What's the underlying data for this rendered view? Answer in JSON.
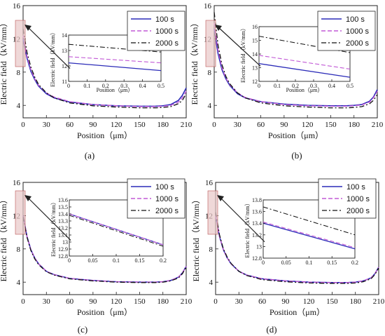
{
  "figure": {
    "colors": {
      "series_100": "#2b2bb8",
      "series_1000": "#c25ad6",
      "series_2000": "#111111",
      "highlight": "#e8c8c8"
    }
  },
  "chart_data": [
    {
      "type": "line",
      "panel_label": "(a)",
      "xlabel": "Position（μm）",
      "ylabel": "Electric field（kV/mm）",
      "xlim": [
        0,
        210
      ],
      "ylim": [
        2.5,
        16
      ],
      "xticks": [
        0,
        30,
        60,
        90,
        120,
        150,
        180,
        210
      ],
      "yticks": [
        4,
        8,
        12,
        16
      ],
      "legend_position": "top-right",
      "series": [
        {
          "name": "100 s",
          "x": [
            0,
            5,
            10,
            15,
            20,
            30,
            40,
            60,
            90,
            120,
            150,
            170,
            180,
            190,
            200,
            205,
            210
          ],
          "y": [
            12.0,
            9.7,
            8.1,
            7.1,
            6.3,
            5.4,
            4.9,
            4.4,
            4.1,
            3.95,
            3.9,
            3.9,
            3.95,
            4.1,
            4.6,
            5.2,
            6.1
          ]
        },
        {
          "name": "1000 s",
          "x": [
            0,
            5,
            10,
            15,
            20,
            30,
            40,
            60,
            90,
            120,
            150,
            170,
            180,
            190,
            200,
            205,
            210
          ],
          "y": [
            12.4,
            9.9,
            8.3,
            7.2,
            6.4,
            5.5,
            5.0,
            4.45,
            4.1,
            3.95,
            3.85,
            3.85,
            3.9,
            4.0,
            4.4,
            4.9,
            5.7
          ]
        },
        {
          "name": "2000 s",
          "x": [
            0,
            5,
            10,
            15,
            20,
            30,
            40,
            60,
            90,
            120,
            150,
            170,
            180,
            190,
            200,
            205,
            210
          ],
          "y": [
            13.2,
            10.4,
            8.6,
            7.4,
            6.5,
            5.5,
            4.9,
            4.3,
            3.95,
            3.8,
            3.7,
            3.7,
            3.75,
            3.85,
            4.2,
            4.6,
            5.4
          ]
        }
      ],
      "inset": {
        "xlim": [
          0,
          0.5
        ],
        "ylim": [
          11,
          14
        ],
        "xticks": [
          0.0,
          0.1,
          0.2,
          0.3,
          0.4,
          0.5
        ],
        "yticks": [
          11,
          12,
          13,
          14
        ],
        "xlabel": "Position（μm）",
        "ylabel": "Electric field（kV/mm）",
        "series": [
          {
            "name": "100 s",
            "x": [
              0,
              0.5
            ],
            "y": [
              12.2,
              11.7
            ]
          },
          {
            "name": "1000 s",
            "x": [
              0,
              0.5
            ],
            "y": [
              12.6,
              12.2
            ]
          },
          {
            "name": "2000 s",
            "x": [
              0,
              0.5
            ],
            "y": [
              13.4,
              12.9
            ]
          }
        ]
      }
    },
    {
      "type": "line",
      "panel_label": "(b)",
      "xlabel": "Position（μm）",
      "ylabel": "Electric field（kV/mm）",
      "xlim": [
        0,
        210
      ],
      "ylim": [
        2.5,
        16
      ],
      "xticks": [
        0,
        30,
        60,
        90,
        120,
        150,
        180,
        210
      ],
      "yticks": [
        4,
        8,
        12,
        16
      ],
      "legend_position": "top-right",
      "series": [
        {
          "name": "100 s",
          "x": [
            0,
            5,
            10,
            15,
            20,
            30,
            40,
            60,
            90,
            120,
            150,
            170,
            180,
            190,
            200,
            205,
            210
          ],
          "y": [
            13.2,
            10.2,
            8.3,
            7.2,
            6.4,
            5.4,
            4.9,
            4.45,
            4.15,
            4.0,
            3.95,
            3.95,
            4.0,
            4.1,
            4.5,
            5.0,
            5.9
          ]
        },
        {
          "name": "1000 s",
          "x": [
            0,
            5,
            10,
            15,
            20,
            30,
            40,
            60,
            90,
            120,
            150,
            170,
            180,
            190,
            200,
            205,
            210
          ],
          "y": [
            13.9,
            10.6,
            8.5,
            7.3,
            6.5,
            5.5,
            4.95,
            4.45,
            4.1,
            3.95,
            3.9,
            3.9,
            3.95,
            4.05,
            4.4,
            4.9,
            5.7
          ]
        },
        {
          "name": "2000 s",
          "x": [
            0,
            5,
            10,
            15,
            20,
            30,
            40,
            60,
            90,
            120,
            150,
            170,
            180,
            190,
            200,
            205,
            210
          ],
          "y": [
            15.2,
            11.2,
            8.9,
            7.5,
            6.6,
            5.5,
            4.9,
            4.3,
            3.95,
            3.8,
            3.7,
            3.7,
            3.75,
            3.85,
            4.2,
            4.6,
            5.3
          ]
        }
      ],
      "inset": {
        "xlim": [
          0,
          0.5
        ],
        "ylim": [
          12,
          16
        ],
        "xticks": [
          0.0,
          0.1,
          0.2,
          0.3,
          0.4,
          0.5
        ],
        "yticks": [
          12,
          13,
          14,
          15,
          16
        ],
        "xlabel": "Position（μm）",
        "ylabel": "Electric field（kV/mm）",
        "series": [
          {
            "name": "100 s",
            "x": [
              0,
              0.5
            ],
            "y": [
              13.3,
              12.3
            ]
          },
          {
            "name": "1000 s",
            "x": [
              0,
              0.5
            ],
            "y": [
              13.9,
              12.9
            ]
          },
          {
            "name": "2000 s",
            "x": [
              0,
              0.5
            ],
            "y": [
              15.3,
              14.1
            ]
          }
        ]
      }
    },
    {
      "type": "line",
      "panel_label": "(c)",
      "xlabel": "Position（μm）",
      "ylabel": "Electric field（kV/mm）",
      "xlim": [
        0,
        210
      ],
      "ylim": [
        2.5,
        16
      ],
      "xticks": [
        0,
        30,
        60,
        90,
        120,
        150,
        180,
        210
      ],
      "yticks": [
        4,
        8,
        12,
        16
      ],
      "legend_position": "top-right",
      "series": [
        {
          "name": "100 s",
          "x": [
            0,
            5,
            10,
            15,
            20,
            30,
            40,
            60,
            90,
            120,
            150,
            170,
            180,
            190,
            200,
            205,
            210
          ],
          "y": [
            12.0,
            9.5,
            7.9,
            6.9,
            6.2,
            5.3,
            4.9,
            4.45,
            4.2,
            4.05,
            4.0,
            4.0,
            4.05,
            4.2,
            4.6,
            5.1,
            5.9
          ]
        },
        {
          "name": "1000 s",
          "x": [
            0,
            5,
            10,
            15,
            20,
            30,
            40,
            60,
            90,
            120,
            150,
            170,
            180,
            190,
            200,
            205,
            210
          ],
          "y": [
            12.0,
            9.5,
            7.9,
            6.9,
            6.2,
            5.3,
            4.9,
            4.45,
            4.2,
            4.05,
            4.0,
            4.0,
            4.05,
            4.2,
            4.6,
            5.1,
            5.9
          ]
        },
        {
          "name": "2000 s",
          "x": [
            0,
            5,
            10,
            15,
            20,
            30,
            40,
            60,
            90,
            120,
            150,
            170,
            180,
            190,
            200,
            205,
            210
          ],
          "y": [
            11.9,
            9.4,
            7.8,
            6.8,
            6.1,
            5.25,
            4.85,
            4.4,
            4.15,
            4.0,
            3.95,
            3.95,
            4.0,
            4.15,
            4.5,
            5.0,
            5.8
          ]
        }
      ],
      "inset": {
        "xlim": [
          0,
          0.2
        ],
        "ylim": [
          12.8,
          13.6
        ],
        "xticks": [
          0.0,
          0.05,
          0.1,
          0.15,
          0.2
        ],
        "yticks": [
          12.8,
          12.9,
          13.0,
          13.1,
          13.2,
          13.3,
          13.4,
          13.5,
          13.6
        ],
        "xlabel": "",
        "ylabel": "Electric field（kV/mm）",
        "series": [
          {
            "name": "100 s",
            "x": [
              0,
              0.2
            ],
            "y": [
              13.4,
              12.96
            ]
          },
          {
            "name": "1000 s",
            "x": [
              0,
              0.2
            ],
            "y": [
              13.4,
              12.96
            ]
          },
          {
            "name": "2000 s",
            "x": [
              0,
              0.2
            ],
            "y": [
              13.38,
              12.94
            ]
          }
        ]
      }
    },
    {
      "type": "line",
      "panel_label": "(d)",
      "xlabel": "Position（μm）",
      "ylabel": "Electric field（kV/mm）",
      "xlim": [
        0,
        210
      ],
      "ylim": [
        2.5,
        16
      ],
      "xticks": [
        0,
        30,
        60,
        90,
        120,
        150,
        180,
        210
      ],
      "yticks": [
        4,
        8,
        12,
        16
      ],
      "legend_position": "top-right",
      "series": [
        {
          "name": "100 s",
          "x": [
            0,
            5,
            10,
            15,
            20,
            30,
            40,
            60,
            90,
            120,
            150,
            170,
            180,
            190,
            200,
            205,
            210
          ],
          "y": [
            12.0,
            9.5,
            7.9,
            6.9,
            6.2,
            5.3,
            4.85,
            4.4,
            4.15,
            4.0,
            3.95,
            3.95,
            4.0,
            4.15,
            4.5,
            5.0,
            5.8
          ]
        },
        {
          "name": "1000 s",
          "x": [
            0,
            5,
            10,
            15,
            20,
            30,
            40,
            60,
            90,
            120,
            150,
            170,
            180,
            190,
            200,
            205,
            210
          ],
          "y": [
            12.0,
            9.5,
            7.9,
            6.9,
            6.2,
            5.3,
            4.85,
            4.4,
            4.15,
            4.0,
            3.95,
            3.95,
            4.0,
            4.15,
            4.5,
            5.0,
            5.8
          ]
        },
        {
          "name": "2000 s",
          "x": [
            0,
            5,
            10,
            15,
            20,
            30,
            40,
            60,
            90,
            120,
            150,
            170,
            180,
            190,
            200,
            205,
            210
          ],
          "y": [
            12.4,
            9.7,
            8.0,
            7.0,
            6.25,
            5.3,
            4.8,
            4.3,
            4.05,
            3.9,
            3.85,
            3.85,
            3.9,
            4.05,
            4.4,
            4.9,
            5.7
          ]
        }
      ],
      "inset": {
        "xlim": [
          0,
          0.2
        ],
        "ylim": [
          12.8,
          13.8
        ],
        "xticks": [
          0.0,
          0.05,
          0.1,
          0.15,
          0.2
        ],
        "yticks": [
          12.8,
          13.0,
          13.2,
          13.4,
          13.6,
          13.8
        ],
        "xlabel": "",
        "ylabel": "Electric field（kV/mm）",
        "series": [
          {
            "name": "100 s",
            "x": [
              0,
              0.2
            ],
            "y": [
              13.4,
              12.96
            ]
          },
          {
            "name": "1000 s",
            "x": [
              0,
              0.2
            ],
            "y": [
              13.42,
              12.98
            ]
          },
          {
            "name": "2000 s",
            "x": [
              0,
              0.2
            ],
            "y": [
              13.68,
              13.2
            ]
          }
        ]
      }
    }
  ]
}
